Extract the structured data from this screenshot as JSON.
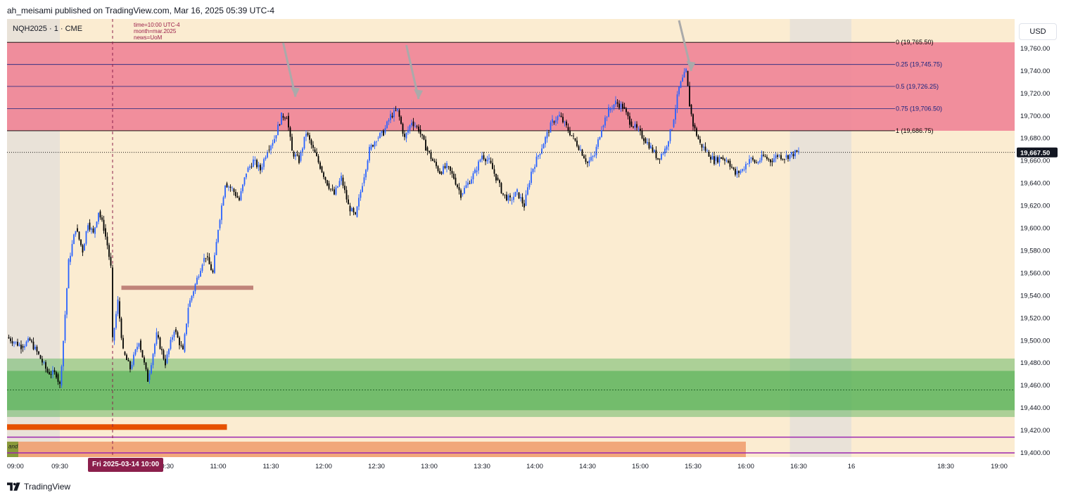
{
  "header": {
    "published_by": "ah_meisami published on TradingView.com, Mar 16, 2025 05:39 UTC-4"
  },
  "symbol": {
    "label": "NQH2025 · 1 · CME"
  },
  "currency_button": {
    "label": "USD"
  },
  "news_note": {
    "line1": "time=10:00 UTC-4",
    "line2": "month=mar.2025",
    "line3": "news=UoM"
  },
  "cursor": {
    "date_badge": "Fri 2025-03-14   10:00"
  },
  "footer": {
    "brand": "TradingView"
  },
  "colors": {
    "background": "#fbecd1",
    "session_shade": "#e9e2d8",
    "up_candle": "#2962ff",
    "down_candle": "#000000",
    "fib_zone": "#f08496",
    "fib_line": "#1a237e",
    "demand_zone": "#4caf50",
    "orange_bar": "#e65100",
    "bottom_zone": "#f0a070",
    "purple_line": "#9c27b0",
    "level_line": "#c0847a",
    "arrow": "#aaaaaa"
  },
  "chart_data": {
    "type": "candlestick",
    "y_axis": {
      "range": [
        19390,
        19780
      ],
      "ticks": [
        "19,760.00",
        "19,740.00",
        "19,720.00",
        "19,700.00",
        "19,680.00",
        "19,660.00",
        "19,640.00",
        "19,620.00",
        "19,600.00",
        "19,580.00",
        "19,560.00",
        "19,540.00",
        "19,520.00",
        "19,500.00",
        "19,480.00",
        "19,460.00",
        "19,440.00",
        "19,420.00",
        "19,400.00"
      ],
      "tick_values": [
        19760,
        19740,
        19720,
        19700,
        19680,
        19660,
        19640,
        19620,
        19600,
        19580,
        19560,
        19540,
        19520,
        19500,
        19480,
        19460,
        19440,
        19420,
        19400
      ]
    },
    "x_axis": {
      "ticks": [
        "09:00",
        "09:30",
        "10:30",
        "11:00",
        "11:30",
        "12:00",
        "12:30",
        "13:00",
        "13:30",
        "14:00",
        "14:30",
        "15:00",
        "15:30",
        "16:00",
        "16:30",
        "16",
        "18:30",
        "19:00"
      ],
      "tick_minutes": [
        540,
        570,
        630,
        660,
        690,
        720,
        750,
        780,
        810,
        840,
        870,
        900,
        930,
        960,
        990,
        1020,
        1110,
        1140
      ],
      "range_minutes": [
        540,
        1160
      ]
    },
    "last_price": {
      "label": "19,667.50",
      "value": 19667.5
    },
    "fib_levels": [
      {
        "label": "0 (19,765.50)",
        "value": 19765.5
      },
      {
        "label": "0.25 (19,745.75)",
        "value": 19745.75
      },
      {
        "label": "0.5 (19,726.25)",
        "value": 19726.25
      },
      {
        "label": "0.75 (19,706.50)",
        "value": 19706.5
      },
      {
        "label": "1 (19,686.75)",
        "value": 19686.75
      }
    ],
    "zones": {
      "fib_zone": {
        "from": 19686.75,
        "to": 19765.5,
        "start_minute": 540,
        "end_minute": 1060
      },
      "demand_outer": {
        "from": 19432,
        "to": 19484
      },
      "demand_inner": {
        "from": 19438,
        "to": 19473,
        "mid": 19456
      },
      "bottom_band": {
        "from": 19390,
        "to": 19410,
        "end_minute": 960
      },
      "orange_line": {
        "value": 19423,
        "end_minute": 665
      },
      "purple_lines": [
        19414,
        19400
      ],
      "level_line": {
        "value": 19547,
        "start_minute": 605,
        "end_minute": 680
      }
    },
    "session_shades": [
      [
        540,
        570
      ],
      [
        985,
        1020
      ]
    ],
    "cursor_minute": 600,
    "candle_path": [
      [
        540,
        19503
      ],
      [
        548,
        19495
      ],
      [
        553,
        19500
      ],
      [
        558,
        19487
      ],
      [
        563,
        19472
      ],
      [
        568,
        19470
      ],
      [
        570,
        19460
      ],
      [
        572,
        19500
      ],
      [
        575,
        19570
      ],
      [
        579,
        19600
      ],
      [
        583,
        19580
      ],
      [
        586,
        19605
      ],
      [
        589,
        19595
      ],
      [
        592,
        19615
      ],
      [
        595,
        19600
      ],
      [
        597,
        19585
      ],
      [
        599,
        19565
      ],
      [
        600,
        19500
      ],
      [
        603,
        19535
      ],
      [
        606,
        19490
      ],
      [
        610,
        19475
      ],
      [
        615,
        19500
      ],
      [
        620,
        19465
      ],
      [
        625,
        19505
      ],
      [
        630,
        19480
      ],
      [
        635,
        19510
      ],
      [
        640,
        19490
      ],
      [
        643,
        19530
      ],
      [
        647,
        19550
      ],
      [
        651,
        19570
      ],
      [
        653,
        19575
      ],
      [
        657,
        19560
      ],
      [
        660,
        19600
      ],
      [
        664,
        19640
      ],
      [
        668,
        19635
      ],
      [
        672,
        19625
      ],
      [
        676,
        19650
      ],
      [
        680,
        19660
      ],
      [
        684,
        19652
      ],
      [
        688,
        19670
      ],
      [
        692,
        19680
      ],
      [
        696,
        19700
      ],
      [
        699,
        19700
      ],
      [
        702,
        19668
      ],
      [
        706,
        19660
      ],
      [
        710,
        19685
      ],
      [
        714,
        19670
      ],
      [
        718,
        19655
      ],
      [
        722,
        19640
      ],
      [
        726,
        19630
      ],
      [
        730,
        19645
      ],
      [
        734,
        19620
      ],
      [
        738,
        19610
      ],
      [
        742,
        19640
      ],
      [
        746,
        19670
      ],
      [
        750,
        19680
      ],
      [
        754,
        19685
      ],
      [
        758,
        19700
      ],
      [
        762,
        19705
      ],
      [
        766,
        19680
      ],
      [
        770,
        19695
      ],
      [
        774,
        19688
      ],
      [
        778,
        19672
      ],
      [
        782,
        19660
      ],
      [
        786,
        19650
      ],
      [
        790,
        19655
      ],
      [
        794,
        19645
      ],
      [
        798,
        19630
      ],
      [
        802,
        19640
      ],
      [
        806,
        19650
      ],
      [
        810,
        19665
      ],
      [
        814,
        19660
      ],
      [
        818,
        19645
      ],
      [
        822,
        19630
      ],
      [
        826,
        19625
      ],
      [
        830,
        19632
      ],
      [
        834,
        19620
      ],
      [
        838,
        19650
      ],
      [
        842,
        19665
      ],
      [
        846,
        19680
      ],
      [
        850,
        19695
      ],
      [
        854,
        19700
      ],
      [
        858,
        19690
      ],
      [
        862,
        19680
      ],
      [
        866,
        19670
      ],
      [
        870,
        19658
      ],
      [
        874,
        19665
      ],
      [
        878,
        19690
      ],
      [
        882,
        19705
      ],
      [
        886,
        19712
      ],
      [
        890,
        19708
      ],
      [
        894,
        19695
      ],
      [
        898,
        19688
      ],
      [
        902,
        19680
      ],
      [
        906,
        19672
      ],
      [
        910,
        19662
      ],
      [
        914,
        19670
      ],
      [
        918,
        19690
      ],
      [
        922,
        19725
      ],
      [
        926,
        19740
      ],
      [
        928,
        19710
      ],
      [
        930,
        19692
      ],
      [
        934,
        19675
      ],
      [
        938,
        19668
      ],
      [
        942,
        19660
      ],
      [
        946,
        19663
      ],
      [
        950,
        19660
      ],
      [
        954,
        19648
      ],
      [
        958,
        19652
      ],
      [
        962,
        19662
      ],
      [
        966,
        19658
      ],
      [
        970,
        19664
      ],
      [
        974,
        19660
      ],
      [
        978,
        19665
      ],
      [
        982,
        19663
      ],
      [
        986,
        19666
      ],
      [
        990,
        19667.5
      ]
    ],
    "arrows": [
      {
        "from": [
          697,
          19765
        ],
        "to": [
          704,
          19717
        ]
      },
      {
        "from": [
          767,
          19763
        ],
        "to": [
          774,
          19715
        ]
      },
      {
        "from": [
          922,
          19785
        ],
        "to": [
          929,
          19740
        ]
      }
    ]
  }
}
